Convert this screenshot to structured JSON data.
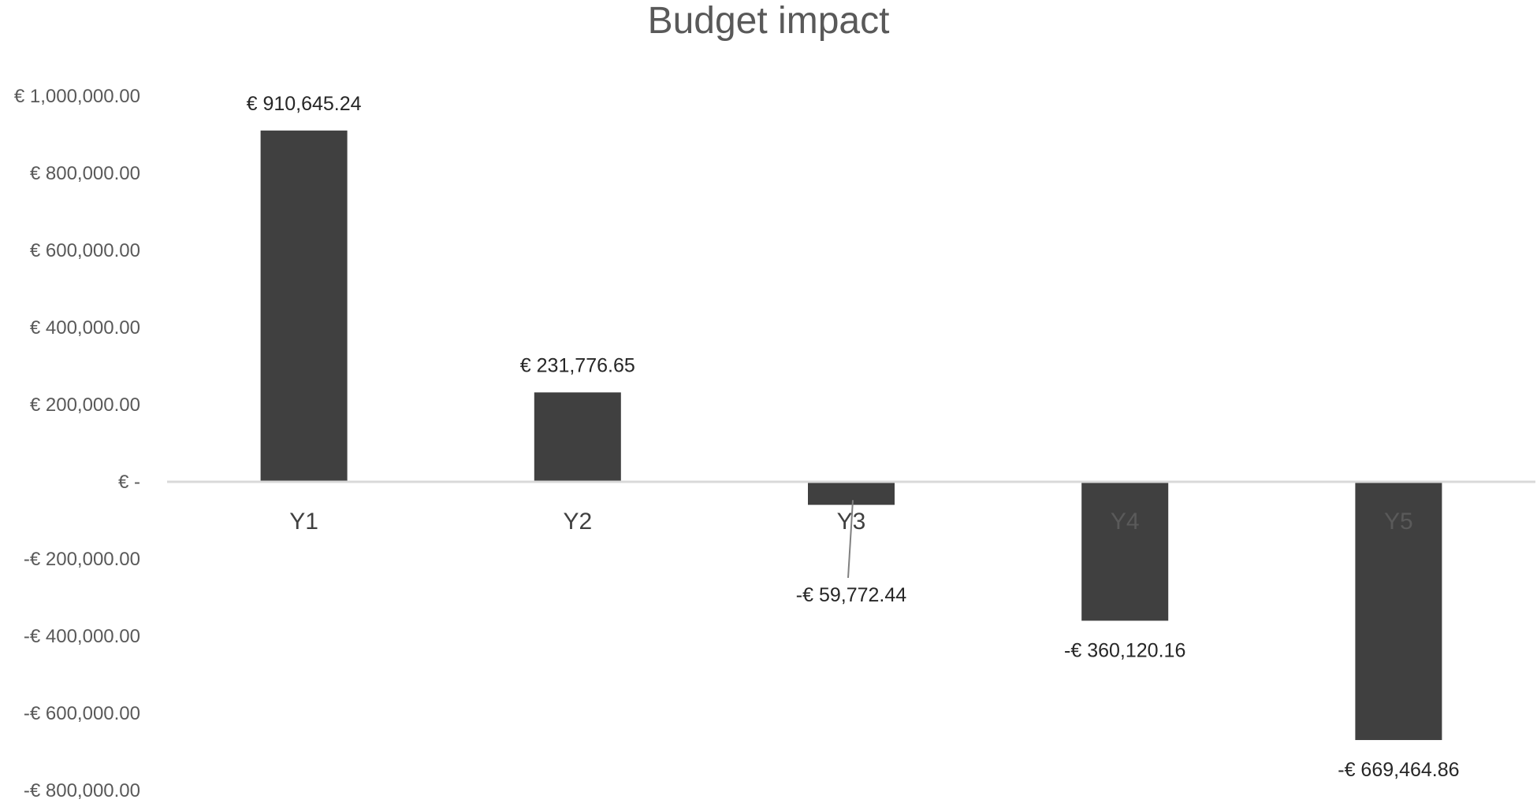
{
  "chart_data": {
    "type": "bar",
    "title": "Budget impact",
    "xlabel": "",
    "ylabel": "",
    "categories": [
      "Y1",
      "Y2",
      "Y3",
      "Y4",
      "Y5"
    ],
    "values": [
      910645.24,
      231776.65,
      -59772.44,
      -360120.16,
      -669464.86
    ],
    "data_labels": [
      "€ 910,645.24",
      "€ 231,776.65",
      "-€ 59,772.44",
      "-€ 360,120.16",
      "-€ 669,464.86"
    ],
    "ylim": [
      -800000,
      1000000
    ],
    "y_ticks": [
      1000000,
      800000,
      600000,
      400000,
      200000,
      0,
      -200000,
      -400000,
      -600000,
      -800000
    ],
    "y_tick_labels": [
      "€ 1,000,000.00",
      "€ 800,000.00",
      "€ 600,000.00",
      "€ 400,000.00",
      "€ 200,000.00",
      "€ -",
      "-€ 200,000.00",
      "-€ 400,000.00",
      "-€ 600,000.00",
      "-€ 800,000.00"
    ],
    "grid": false,
    "legend": "none",
    "colors": {
      "bar": "#404040",
      "axis": "#d9d9d9",
      "title": "#595959",
      "tick": "#595959",
      "label": "#262626"
    }
  }
}
